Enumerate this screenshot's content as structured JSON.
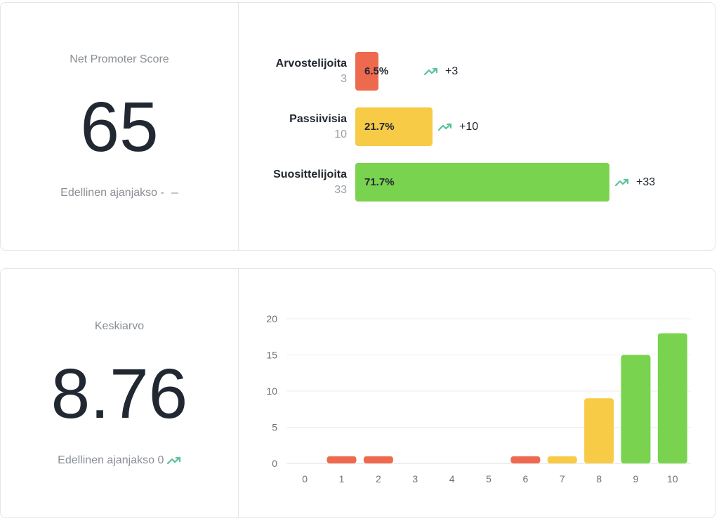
{
  "nps_card": {
    "label": "Net Promoter Score",
    "value": "65",
    "previous_label": "Edellinen ajanjakso -",
    "segments": [
      {
        "name": "Arvostelijoita",
        "count": "3",
        "percent_label": "6.5%",
        "percent": 6.5,
        "change": "+3",
        "color": "#ee6a4f"
      },
      {
        "name": "Passiivisia",
        "count": "10",
        "percent_label": "21.7%",
        "percent": 21.7,
        "change": "+10",
        "color": "#f7cb45"
      },
      {
        "name": "Suosittelijoita",
        "count": "33",
        "percent_label": "71.7%",
        "percent": 71.7,
        "change": "+33",
        "color": "#7ad34f"
      }
    ]
  },
  "avg_card": {
    "label": "Keskiarvo",
    "value": "8.76",
    "previous_label": "Edellinen ajanjakso 0"
  },
  "colors": {
    "trend_up": "#56c496",
    "detractor": "#ee6a4f",
    "passive": "#f7cb45",
    "promoter": "#7ad34f"
  },
  "chart_data": {
    "type": "bar",
    "categories": [
      "0",
      "1",
      "2",
      "3",
      "4",
      "5",
      "6",
      "7",
      "8",
      "9",
      "10"
    ],
    "values": [
      0,
      1,
      1,
      0,
      0,
      0,
      1,
      1,
      9,
      15,
      18
    ],
    "bar_colors": [
      "#ee6a4f",
      "#ee6a4f",
      "#ee6a4f",
      "#ee6a4f",
      "#ee6a4f",
      "#ee6a4f",
      "#ee6a4f",
      "#f7cb45",
      "#f7cb45",
      "#7ad34f",
      "#7ad34f"
    ],
    "yticks": [
      0,
      5,
      10,
      15,
      20
    ],
    "ylim": [
      0,
      20
    ],
    "grid": true,
    "legend": "none"
  }
}
